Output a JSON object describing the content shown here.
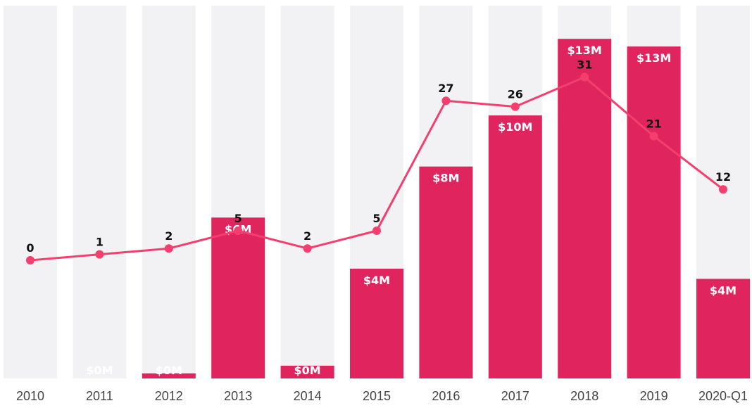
{
  "chart_data": {
    "type": "bar",
    "title": "",
    "xlabel": "",
    "ylabel": "",
    "categories": [
      "2010",
      "2011",
      "2012",
      "2013",
      "2014",
      "2015",
      "2016",
      "2017",
      "2018",
      "2019",
      "2020-Q1"
    ],
    "series": [
      {
        "type": "bar",
        "values": [
          0,
          0,
          0.2,
          6.3,
          0.5,
          4.3,
          8.3,
          10.3,
          13.3,
          13.0,
          3.9
        ],
        "labels": [
          "",
          "$0M",
          "$0M",
          "$6M",
          "$0M",
          "$4M",
          "$8M",
          "$10M",
          "$13M",
          "$13M",
          "$4M"
        ]
      },
      {
        "type": "line",
        "values": [
          0,
          1,
          2,
          5,
          2,
          5,
          27,
          26,
          31,
          21,
          12
        ],
        "labels": [
          "0",
          "1",
          "2",
          "5",
          "2",
          "5",
          "27",
          "26",
          "31",
          "21",
          "12"
        ]
      }
    ],
    "grid": false,
    "legend": "none",
    "colors": {
      "bar": "#e0245e",
      "line": "#f43f6e",
      "background_column": "#f2f2f4",
      "bar_label": "#ffffff",
      "line_label": "#111111",
      "tick_label": "#444444"
    }
  }
}
